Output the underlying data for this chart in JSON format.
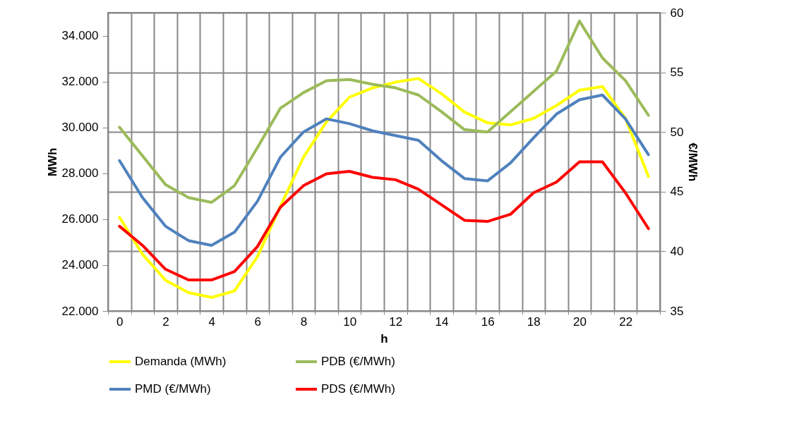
{
  "chart_data": {
    "type": "line",
    "xlabel": "h",
    "ylabel": "MWh",
    "y2label": "€/MWh",
    "categories": [
      "0",
      null,
      "2",
      null,
      "4",
      null,
      "6",
      null,
      "8",
      null,
      "10",
      null,
      "12",
      null,
      "14",
      null,
      "16",
      null,
      "18",
      null,
      "20",
      null,
      "22",
      null
    ],
    "series": [
      {
        "name": "Demanda (MWh)",
        "color": "#ffff00",
        "values": [
          26080,
          24470,
          23340,
          22800,
          22590,
          22870,
          24370,
          26570,
          28700,
          30240,
          31320,
          31720,
          31970,
          32130,
          31470,
          30670,
          30200,
          30110,
          30390,
          30950,
          31620,
          31780,
          30390,
          27860
        ]
      },
      {
        "name": "PDB (€/MWh)",
        "color": "#9bbb59",
        "axis": "y2",
        "values": [
          50.4,
          48.0,
          45.6,
          44.5,
          44.1,
          45.5,
          48.7,
          52.0,
          53.3,
          54.3,
          54.4,
          54.0,
          53.7,
          53.1,
          51.7,
          50.2,
          50.0,
          51.7,
          53.4,
          55.1,
          59.3,
          56.2,
          54.3,
          51.4
        ]
      },
      {
        "name": "PMD (€/MWh)",
        "color": "#4f81bd",
        "axis": "y2",
        "values": [
          47.6,
          44.5,
          42.1,
          40.9,
          40.5,
          41.6,
          44.2,
          47.9,
          50.0,
          51.1,
          50.7,
          50.1,
          49.7,
          49.3,
          47.6,
          46.1,
          45.9,
          47.4,
          49.5,
          51.5,
          52.7,
          53.1,
          51.1,
          48.1
        ]
      },
      {
        "name": "PDS (€/MWh)",
        "color": "#ff0000",
        "axis": "y2",
        "values": [
          42.1,
          40.5,
          38.5,
          37.6,
          37.6,
          38.3,
          40.4,
          43.7,
          45.5,
          46.5,
          46.7,
          46.2,
          46.0,
          45.2,
          43.9,
          42.6,
          42.5,
          43.1,
          44.9,
          45.8,
          47.5,
          47.5,
          44.9,
          41.9
        ]
      }
    ],
    "ylim": [
      22000,
      35000
    ],
    "yticks": [
      {
        "value": 22000,
        "label": "22.000"
      },
      {
        "value": 24000,
        "label": "24.000"
      },
      {
        "value": 26000,
        "label": "26.000"
      },
      {
        "value": 28000,
        "label": "28.000"
      },
      {
        "value": 30000,
        "label": "30.000"
      },
      {
        "value": 32000,
        "label": "32.000"
      },
      {
        "value": 34000,
        "label": "34.000"
      }
    ],
    "y2lim": [
      35,
      60
    ],
    "y2ticks": [
      35,
      40,
      45,
      50,
      55,
      60
    ],
    "grid": true,
    "legend": "bottom"
  }
}
